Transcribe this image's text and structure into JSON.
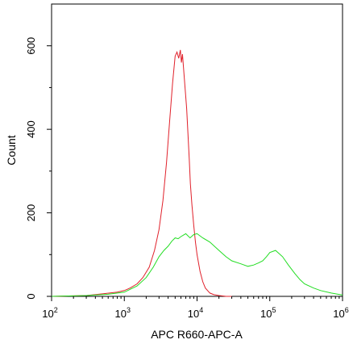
{
  "chart_data": {
    "type": "line",
    "xlabel": "APC R660-APC-A",
    "ylabel": "Count",
    "x_scale": "log",
    "xlim": [
      100,
      1000000
    ],
    "ylim": [
      0,
      700
    ],
    "x_ticks": [
      {
        "value": 100,
        "base": "10",
        "exp": "2"
      },
      {
        "value": 1000,
        "base": "10",
        "exp": "3"
      },
      {
        "value": 10000,
        "base": "10",
        "exp": "4"
      },
      {
        "value": 100000,
        "base": "10",
        "exp": "5"
      },
      {
        "value": 1000000,
        "base": "10",
        "exp": "6"
      }
    ],
    "y_ticks": [
      {
        "value": 0,
        "label": "0"
      },
      {
        "value": 200,
        "label": "200"
      },
      {
        "value": 400,
        "label": "400"
      },
      {
        "value": 600,
        "label": "600"
      }
    ],
    "grid": false,
    "series": [
      {
        "color": "#e0202a",
        "x": [
          100,
          300,
          500,
          800,
          1000,
          1200,
          1500,
          1800,
          2200,
          2600,
          3000,
          3400,
          3800,
          4200,
          4600,
          5000,
          5300,
          5600,
          5900,
          6100,
          6300,
          6500,
          6700,
          6900,
          7200,
          7500,
          7800,
          8100,
          8500,
          9000,
          9500,
          10000,
          11000,
          12000,
          13000,
          15000,
          17000,
          20000,
          25000,
          30000
        ],
        "y": [
          0,
          2,
          6,
          10,
          14,
          20,
          30,
          45,
          70,
          110,
          160,
          230,
          320,
          420,
          510,
          575,
          585,
          570,
          590,
          560,
          580,
          550,
          520,
          490,
          450,
          390,
          330,
          270,
          220,
          170,
          130,
          100,
          60,
          35,
          20,
          8,
          4,
          2,
          0,
          0
        ]
      },
      {
        "color": "#22dd22",
        "x": [
          100,
          300,
          600,
          1000,
          1500,
          2000,
          2500,
          3000,
          3500,
          4000,
          4500,
          5000,
          5500,
          6000,
          7000,
          8000,
          9000,
          10000,
          12000,
          15000,
          20000,
          25000,
          30000,
          40000,
          50000,
          60000,
          70000,
          80000,
          90000,
          100000,
          120000,
          150000,
          180000,
          220000,
          260000,
          300000,
          400000,
          500000,
          700000,
          1000000
        ],
        "y": [
          0,
          2,
          5,
          10,
          25,
          45,
          70,
          95,
          110,
          120,
          132,
          140,
          138,
          143,
          150,
          140,
          148,
          150,
          140,
          130,
          110,
          95,
          85,
          78,
          72,
          75,
          80,
          85,
          95,
          105,
          110,
          95,
          75,
          55,
          40,
          30,
          20,
          14,
          8,
          3
        ]
      }
    ]
  }
}
